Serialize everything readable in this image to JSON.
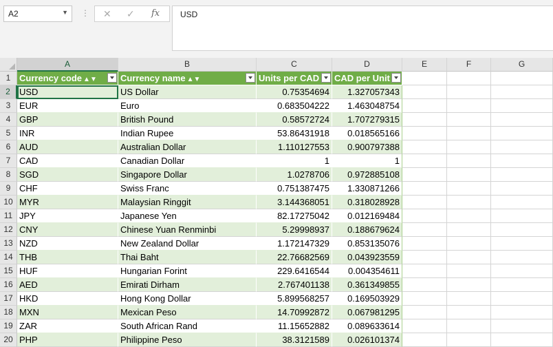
{
  "formula_bar": {
    "name_box": "A2",
    "separator": "⋮",
    "cancel_icon": "✕",
    "enter_icon": "✓",
    "function_icon": "fx",
    "value": "USD"
  },
  "columns": [
    "A",
    "B",
    "C",
    "D",
    "E",
    "F",
    "G"
  ],
  "rows": [
    "1",
    "2",
    "3",
    "4",
    "5",
    "6",
    "7",
    "8",
    "9",
    "10",
    "11",
    "12",
    "13",
    "14",
    "15",
    "16",
    "17",
    "18",
    "19",
    "20"
  ],
  "table": {
    "headers": {
      "code": "Currency code",
      "name": "Currency name",
      "units": "Units per CAD",
      "cad": "CAD per Unit",
      "sort_icon": "▲▼"
    },
    "rows": [
      [
        "USD",
        "US Dollar",
        "0.75354694",
        "1.327057343"
      ],
      [
        "EUR",
        "Euro",
        "0.683504222",
        "1.463048754"
      ],
      [
        "GBP",
        "British Pound",
        "0.58572724",
        "1.707279315"
      ],
      [
        "INR",
        "Indian Rupee",
        "53.86431918",
        "0.018565166"
      ],
      [
        "AUD",
        "Australian Dollar",
        "1.110127553",
        "0.900797388"
      ],
      [
        "CAD",
        "Canadian Dollar",
        "1",
        "1"
      ],
      [
        "SGD",
        "Singapore Dollar",
        "1.0278706",
        "0.972885108"
      ],
      [
        "CHF",
        "Swiss Franc",
        "0.751387475",
        "1.330871266"
      ],
      [
        "MYR",
        "Malaysian Ringgit",
        "3.144368051",
        "0.318028928"
      ],
      [
        "JPY",
        "Japanese Yen",
        "82.17275042",
        "0.012169484"
      ],
      [
        "CNY",
        "Chinese Yuan Renminbi",
        "5.29998937",
        "0.188679624"
      ],
      [
        "NZD",
        "New Zealand Dollar",
        "1.172147329",
        "0.853135076"
      ],
      [
        "THB",
        "Thai Baht",
        "22.76682569",
        "0.043923559"
      ],
      [
        "HUF",
        "Hungarian Forint",
        "229.6416544",
        "0.004354611"
      ],
      [
        "AED",
        "Emirati Dirham",
        "2.767401138",
        "0.361349855"
      ],
      [
        "HKD",
        "Hong Kong Dollar",
        "5.899568257",
        "0.169503929"
      ],
      [
        "MXN",
        "Mexican Peso",
        "14.70992872",
        "0.067981295"
      ],
      [
        "ZAR",
        "South African Rand",
        "11.15652882",
        "0.089633614"
      ],
      [
        "PHP",
        "Philippine Peso",
        "38.3121589",
        "0.026101374"
      ]
    ]
  },
  "colors": {
    "header_green": "#70ad47",
    "band_green": "#e2efda",
    "selection_green": "#217346"
  }
}
